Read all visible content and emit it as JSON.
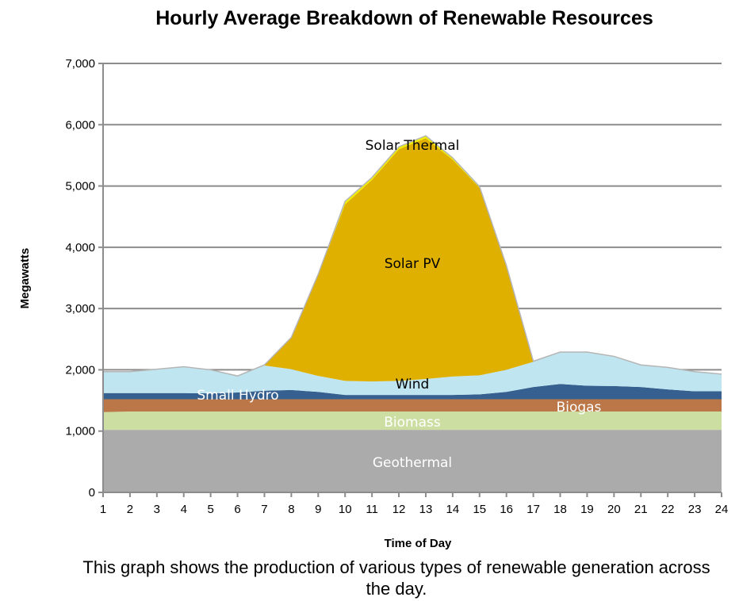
{
  "title": "Hourly Average Breakdown of Renewable Resources",
  "caption": "This graph shows the production of various types of renewable generation across the day.",
  "chart_data": {
    "type": "area",
    "stacked": true,
    "title": "Hourly Average Breakdown of Renewable Resources",
    "xlabel": "Time of Day",
    "ylabel": "Megawatts",
    "ylim": [
      0,
      7000
    ],
    "yticks": [
      "0",
      "1,000",
      "2,000",
      "3,000",
      "4,000",
      "5,000",
      "6,000",
      "7,000"
    ],
    "grid": true,
    "legend": "inline labels",
    "x": [
      1,
      2,
      3,
      4,
      5,
      6,
      7,
      8,
      9,
      10,
      11,
      12,
      13,
      14,
      15,
      16,
      17,
      18,
      19,
      20,
      21,
      22,
      23,
      24
    ],
    "series": [
      {
        "name": "Geothermal",
        "color": "#ababab",
        "label_color": "#ffffff",
        "values": [
          1020,
          1020,
          1020,
          1020,
          1020,
          1020,
          1020,
          1020,
          1020,
          1020,
          1020,
          1020,
          1020,
          1020,
          1020,
          1020,
          1020,
          1020,
          1020,
          1020,
          1020,
          1020,
          1020,
          1020
        ]
      },
      {
        "name": "Biomass",
        "color": "#cddea3",
        "label_color": "#ffffff",
        "values": [
          290,
          300,
          300,
          300,
          300,
          300,
          300,
          300,
          300,
          300,
          300,
          300,
          300,
          300,
          300,
          300,
          300,
          300,
          300,
          300,
          300,
          300,
          300,
          300
        ]
      },
      {
        "name": "Biogas",
        "color": "#bb7748",
        "label_color": "#ffffff",
        "values": [
          210,
          200,
          200,
          200,
          200,
          200,
          200,
          200,
          200,
          200,
          200,
          200,
          200,
          200,
          200,
          200,
          200,
          200,
          200,
          200,
          200,
          200,
          200,
          200
        ]
      },
      {
        "name": "Small Hydro",
        "color": "#36608f",
        "label_color": "#ffffff",
        "values": [
          100,
          100,
          100,
          100,
          95,
          110,
          140,
          150,
          120,
          70,
          70,
          70,
          70,
          70,
          80,
          120,
          200,
          250,
          220,
          215,
          200,
          160,
          130,
          130
        ]
      },
      {
        "name": "Wind",
        "color": "#bfe6f0",
        "label_color": "#000000",
        "values": [
          350,
          350,
          390,
          430,
          385,
          270,
          410,
          340,
          260,
          230,
          220,
          230,
          260,
          300,
          310,
          360,
          410,
          520,
          550,
          485,
          360,
          360,
          320,
          280
        ]
      },
      {
        "name": "Solar PV",
        "color": "#e0b000",
        "label_color": "#000000",
        "values": [
          0,
          0,
          0,
          0,
          0,
          0,
          10,
          520,
          1650,
          2880,
          3290,
          3780,
          3930,
          3540,
          3060,
          1700,
          10,
          0,
          0,
          0,
          0,
          0,
          0,
          0
        ]
      },
      {
        "name": "Solar Thermal",
        "color": "#f0f000",
        "label_color": "#000000",
        "values": [
          0,
          0,
          0,
          0,
          0,
          0,
          0,
          0,
          10,
          50,
          40,
          40,
          40,
          30,
          20,
          0,
          0,
          0,
          0,
          0,
          0,
          0,
          0,
          0
        ]
      }
    ]
  }
}
